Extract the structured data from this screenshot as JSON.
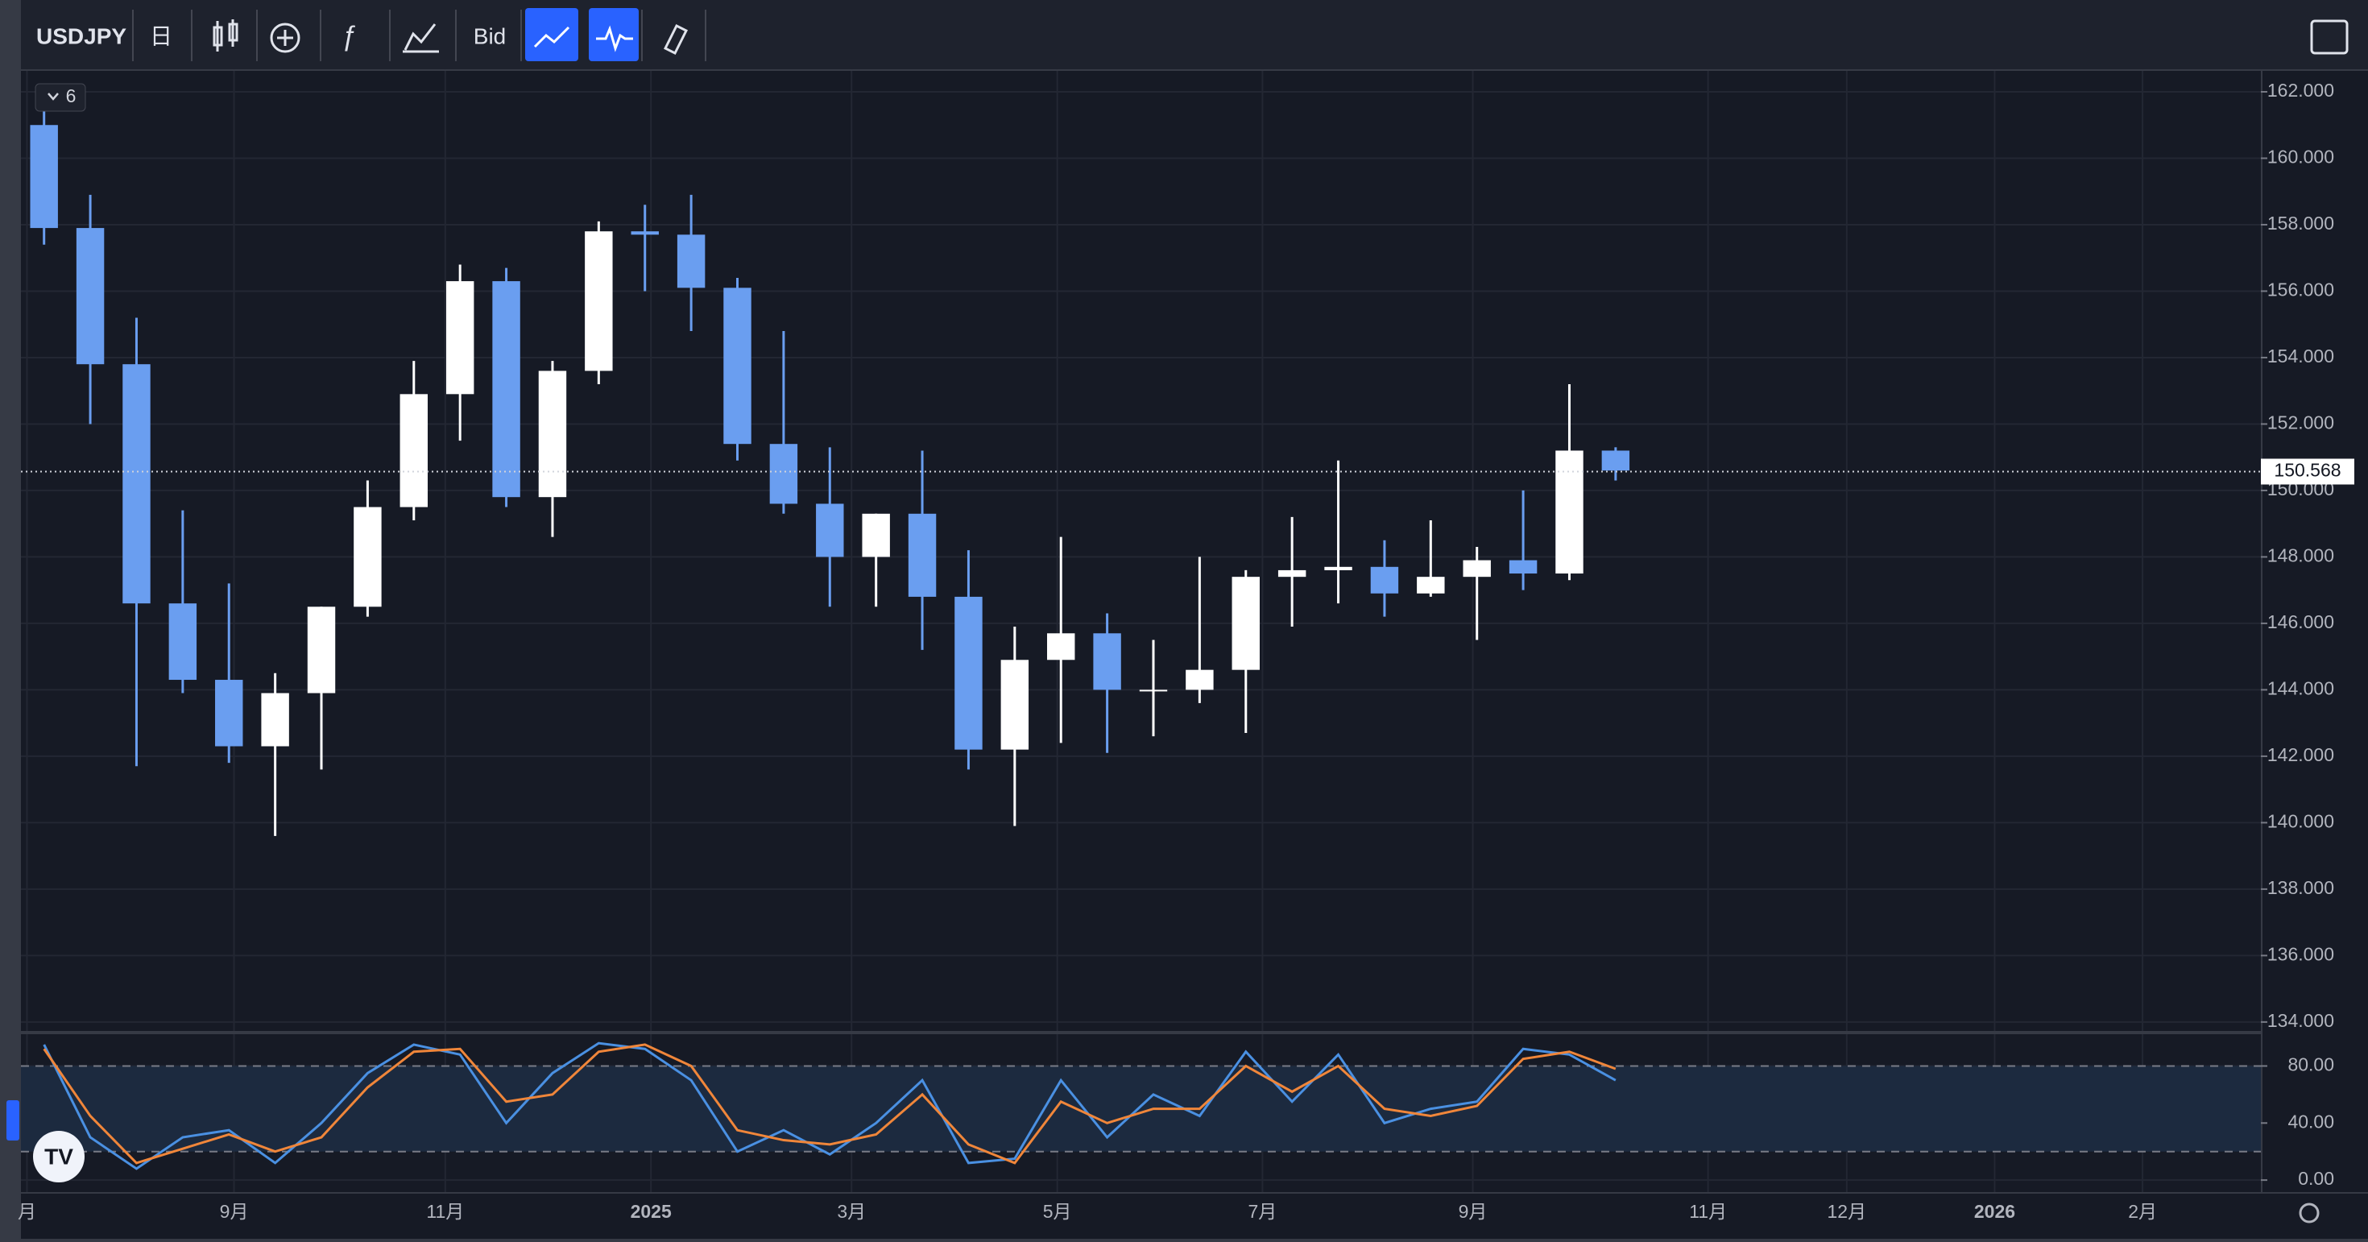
{
  "toolbar": {
    "symbol": "USDJPY",
    "interval": "日",
    "price_source": "Bid"
  },
  "legend_toggle": 6,
  "chart_data": [
    {
      "type": "candlestick",
      "x": [
        0.5,
        1.5,
        2.5,
        3.5,
        4.5,
        5.5,
        6.5,
        7.5,
        8.5,
        9.5,
        10.5,
        11.5,
        12.5,
        13.5,
        14.5,
        15.5,
        16.5,
        17.5,
        18.5,
        19.5,
        20.5,
        21.5,
        22.5,
        23.5,
        24.5,
        25.5,
        26.5,
        27.5,
        28.5,
        29.5,
        30.5,
        31.5,
        32.5,
        33.5,
        34.5
      ],
      "open": [
        161.0,
        157.9,
        153.8,
        146.6,
        144.3,
        142.3,
        143.9,
        146.5,
        149.5,
        152.9,
        156.3,
        149.8,
        153.6,
        157.8,
        157.7,
        156.1,
        151.4,
        149.6,
        148.0,
        149.3,
        146.8,
        142.2,
        144.9,
        145.7,
        144.0,
        144.0,
        144.6,
        147.4,
        147.6,
        147.7,
        146.9,
        147.4,
        147.9,
        147.5,
        151.2
      ],
      "high": [
        161.9,
        158.9,
        155.2,
        149.4,
        147.2,
        144.5,
        146.5,
        150.3,
        153.9,
        156.8,
        156.7,
        153.9,
        158.1,
        158.6,
        158.9,
        156.4,
        154.8,
        151.3,
        149.3,
        151.2,
        148.2,
        145.9,
        148.6,
        146.3,
        145.5,
        148.0,
        147.6,
        149.2,
        150.9,
        148.5,
        149.1,
        148.3,
        150.0,
        153.2,
        151.3
      ],
      "low": [
        157.4,
        152.0,
        141.7,
        143.9,
        141.8,
        139.6,
        141.6,
        146.2,
        149.1,
        151.5,
        149.5,
        148.6,
        153.2,
        156.0,
        154.8,
        150.9,
        149.3,
        146.5,
        146.5,
        145.2,
        141.6,
        139.9,
        142.4,
        142.1,
        142.6,
        143.6,
        142.7,
        145.9,
        146.6,
        146.2,
        146.8,
        145.5,
        147.0,
        147.3,
        150.3
      ],
      "close": [
        157.9,
        153.8,
        146.6,
        144.3,
        142.3,
        143.9,
        146.5,
        149.5,
        152.9,
        156.3,
        149.8,
        153.6,
        157.8,
        157.7,
        156.1,
        151.4,
        149.6,
        148.0,
        149.3,
        146.8,
        142.2,
        144.9,
        145.7,
        144.0,
        144.0,
        144.6,
        147.4,
        147.6,
        147.7,
        146.9,
        147.4,
        147.9,
        147.5,
        151.2,
        150.6
      ],
      "up_color": "#ffffff",
      "down_color": "#6a9ef0",
      "xlim": [
        0,
        48.46
      ],
      "ylim": [
        133.73,
        162.63
      ],
      "yticks": [
        {
          "value": 134,
          "label": "134.000"
        },
        {
          "value": 136,
          "label": "136.000"
        },
        {
          "value": 138,
          "label": "138.000"
        },
        {
          "value": 140,
          "label": "140.000"
        },
        {
          "value": 142,
          "label": "142.000"
        },
        {
          "value": 144,
          "label": "144.000"
        },
        {
          "value": 146,
          "label": "146.000"
        },
        {
          "value": 148,
          "label": "148.000"
        },
        {
          "value": 150,
          "label": "150.000"
        },
        {
          "value": 152,
          "label": "152.000"
        },
        {
          "value": 154,
          "label": "154.000"
        },
        {
          "value": 156,
          "label": "156.000"
        },
        {
          "value": 158,
          "label": "158.000"
        },
        {
          "value": 160,
          "label": "160.000"
        },
        {
          "value": 162,
          "label": "162.000"
        }
      ],
      "last_price": 150.568,
      "grid": true
    },
    {
      "type": "line",
      "x": [
        0.5,
        1.5,
        2.5,
        3.5,
        4.5,
        5.5,
        6.5,
        7.5,
        8.5,
        9.5,
        10.5,
        11.5,
        12.5,
        13.5,
        14.5,
        15.5,
        16.5,
        17.5,
        18.5,
        19.5,
        20.5,
        21.5,
        22.5,
        23.5,
        24.5,
        25.5,
        26.5,
        27.5,
        28.5,
        29.5,
        30.5,
        31.5,
        32.5,
        33.5,
        34.5
      ],
      "series": [
        {
          "color": "#4a90e2",
          "values": [
            95,
            30,
            8,
            30,
            35,
            12,
            40,
            75,
            95,
            88,
            40,
            75,
            96,
            92,
            70,
            20,
            35,
            18,
            40,
            70,
            12,
            15,
            70,
            30,
            60,
            45,
            90,
            55,
            88,
            40,
            50,
            55,
            92,
            88,
            70
          ]
        },
        {
          "color": "#f0863a",
          "values": [
            92,
            45,
            12,
            22,
            32,
            20,
            30,
            65,
            90,
            92,
            55,
            60,
            90,
            95,
            80,
            35,
            28,
            25,
            32,
            60,
            25,
            12,
            55,
            40,
            50,
            50,
            80,
            62,
            80,
            50,
            45,
            52,
            85,
            90,
            78
          ]
        }
      ],
      "bands": [
        20,
        80
      ],
      "xlim": [
        0,
        48.46
      ],
      "ylim": [
        -8.4,
        102.3
      ],
      "yticks": [
        {
          "value": 0,
          "label": "0.00"
        },
        {
          "value": 40,
          "label": "40.00"
        },
        {
          "value": 80,
          "label": "80.00"
        }
      ],
      "xticks": [
        {
          "value": 0.13,
          "label": "月"
        },
        {
          "value": 4.61,
          "label": "9月"
        },
        {
          "value": 9.18,
          "label": "11月"
        },
        {
          "value": 13.63,
          "label": "2025"
        },
        {
          "value": 17.97,
          "label": "3月"
        },
        {
          "value": 22.42,
          "label": "5月"
        },
        {
          "value": 26.86,
          "label": "7月"
        },
        {
          "value": 31.41,
          "label": "9月"
        },
        {
          "value": 36.5,
          "label": "11月"
        },
        {
          "value": 39.5,
          "label": "12月"
        },
        {
          "value": 42.7,
          "label": "2026"
        },
        {
          "value": 45.9,
          "label": "2月"
        }
      ],
      "grid": true
    }
  ]
}
